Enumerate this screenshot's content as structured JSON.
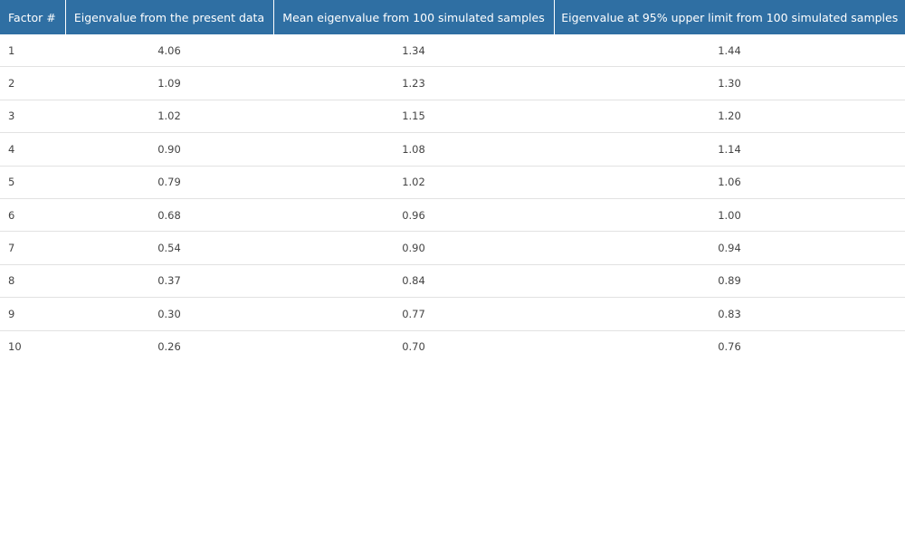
{
  "table": {
    "headers": [
      "Factor #",
      "Eigenvalue from the present data",
      "Mean eigenvalue from 100 simulated samples",
      "Eigenvalue at 95% upper limit from 100 simulated samples"
    ],
    "rows": [
      [
        "1",
        "4.06",
        "1.34",
        "1.44"
      ],
      [
        "2",
        "1.09",
        "1.23",
        "1.30"
      ],
      [
        "3",
        "1.02",
        "1.15",
        "1.20"
      ],
      [
        "4",
        "0.90",
        "1.08",
        "1.14"
      ],
      [
        "5",
        "0.79",
        "1.02",
        "1.06"
      ],
      [
        "6",
        "0.68",
        "0.96",
        "1.00"
      ],
      [
        "7",
        "0.54",
        "0.90",
        "0.94"
      ],
      [
        "8",
        "0.37",
        "0.84",
        "0.89"
      ],
      [
        "9",
        "0.30",
        "0.77",
        "0.83"
      ],
      [
        "10",
        "0.26",
        "0.70",
        "0.76"
      ]
    ]
  },
  "colors": {
    "header_background": "#2f6fa3",
    "header_text": "#ffffff",
    "row_divider": "#e2e2e2"
  }
}
